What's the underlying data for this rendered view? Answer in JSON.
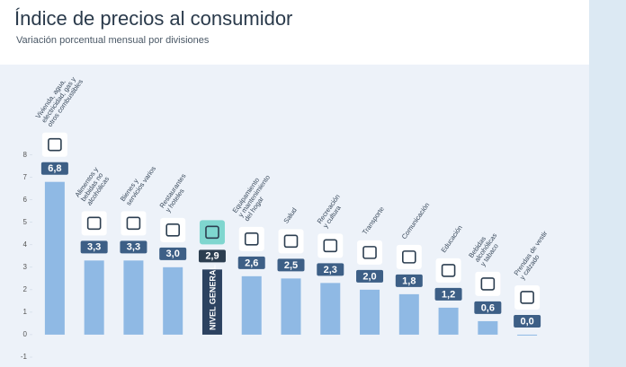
{
  "chart_data": {
    "type": "bar",
    "title": "Índice de precios al consumidor",
    "subtitle": "Variación porcentual mensual por divisiones",
    "categories": [
      [
        "Vivienda, agua,",
        "electricidad, gas y",
        "otros combustibles"
      ],
      [
        "Alimentos y",
        "bebidas no",
        "alcohólicas"
      ],
      [
        "Bienes y",
        "servicios varios"
      ],
      [
        "Restaurantes",
        "y hoteles"
      ],
      [
        "NIVEL GENERAL"
      ],
      [
        "Equipamiento",
        "y mantenimiento",
        "del hogar"
      ],
      [
        "Salud"
      ],
      [
        "Recreación",
        "y cultura"
      ],
      [
        "Transporte"
      ],
      [
        "Comunicación"
      ],
      [
        "Educación"
      ],
      [
        "Bebidas",
        "alcohólicas",
        "y tabaco"
      ],
      [
        "Prendas de vestir",
        "y calzado"
      ]
    ],
    "values": [
      6.8,
      3.3,
      3.3,
      3.0,
      2.9,
      2.6,
      2.5,
      2.3,
      2.0,
      1.8,
      1.2,
      0.6,
      0.0
    ],
    "value_labels": [
      "6,8",
      "3,3",
      "3,3",
      "3,0",
      "2,9",
      "2,6",
      "2,5",
      "2,3",
      "2,0",
      "1,8",
      "1,2",
      "0,6",
      "0,0"
    ],
    "colors": [
      "#8fb9e4",
      "#8fb9e4",
      "#8fb9e4",
      "#8fb9e4",
      "#2c4260",
      "#8fb9e4",
      "#8fb9e4",
      "#8fb9e4",
      "#8fb9e4",
      "#8fb9e4",
      "#8fb9e4",
      "#8fb9e4",
      "#8fb9e4"
    ],
    "highlight_color": "#2c4260",
    "ylim": [
      -1.4,
      11.9
    ],
    "yticks": [
      -1,
      0,
      1,
      2,
      3,
      4,
      5,
      6,
      7,
      8
    ]
  }
}
